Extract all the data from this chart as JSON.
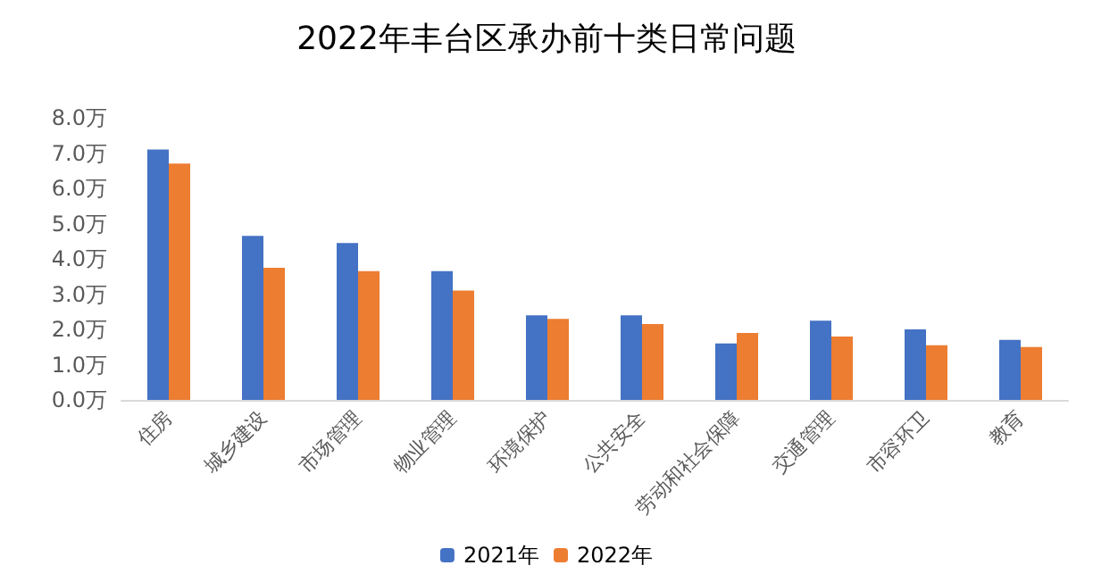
{
  "chart_data": {
    "type": "bar",
    "title": "2022年丰台区承办前十类日常问题",
    "categories": [
      "住房",
      "城乡建设",
      "市场管理",
      "物业管理",
      "环境保护",
      "公共安全",
      "劳动和社会保障",
      "交通管理",
      "市容环卫",
      "教育"
    ],
    "series": [
      {
        "name": "2021年",
        "color": "#4472c4",
        "values": [
          7.1,
          4.65,
          4.45,
          3.65,
          2.4,
          2.4,
          1.6,
          2.25,
          2.0,
          1.7
        ]
      },
      {
        "name": "2022年",
        "color": "#ed7d31",
        "values": [
          6.7,
          3.75,
          3.65,
          3.1,
          2.3,
          2.15,
          1.9,
          1.8,
          1.55,
          1.5
        ]
      }
    ],
    "ylim": [
      0,
      8
    ],
    "yticks": [
      {
        "value": 0,
        "label": "0.0万"
      },
      {
        "value": 1,
        "label": "1.0万"
      },
      {
        "value": 2,
        "label": "2.0万"
      },
      {
        "value": 3,
        "label": "3.0万"
      },
      {
        "value": 4,
        "label": "4.0万"
      },
      {
        "value": 5,
        "label": "5.0万"
      },
      {
        "value": 6,
        "label": "6.0万"
      },
      {
        "value": 7,
        "label": "7.0万"
      },
      {
        "value": 8,
        "label": "8.0万"
      }
    ],
    "grid": false,
    "legend": "bottom"
  }
}
